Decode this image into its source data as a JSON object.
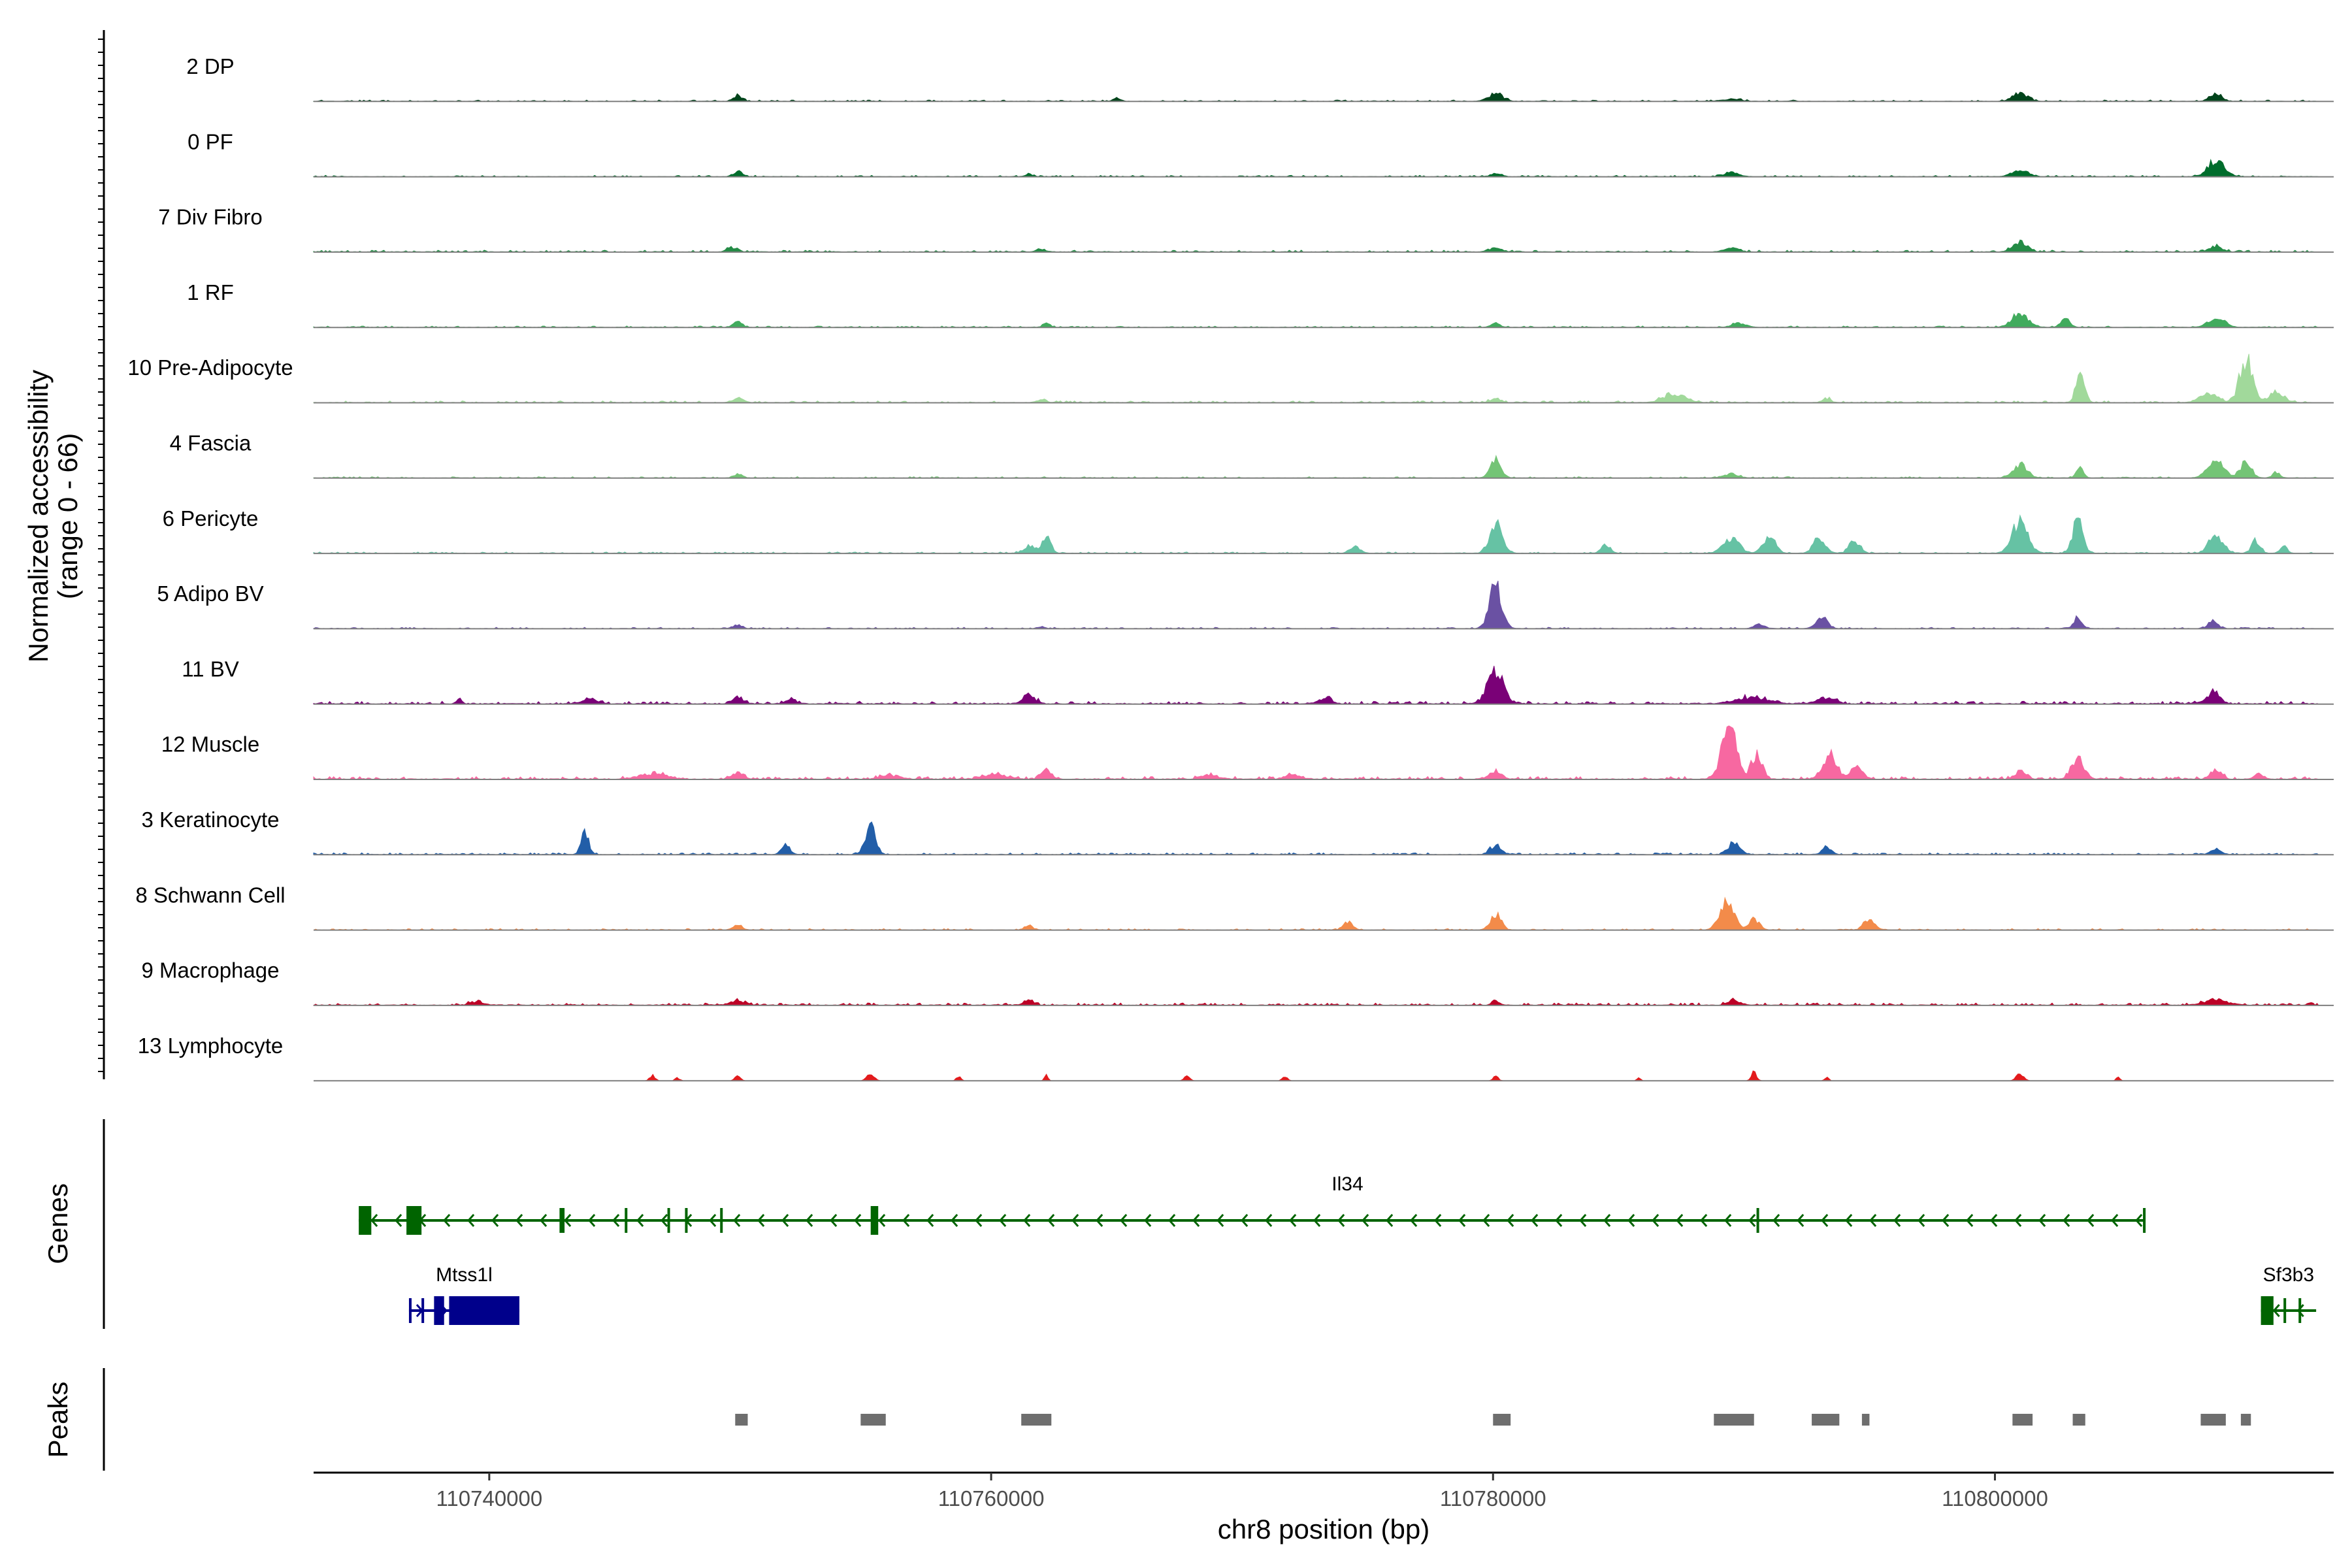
{
  "chart_data": {
    "type": "area",
    "title": "",
    "ylabel": "Normalized accessibility (range 0 - 66)",
    "ylabel_lines": [
      "Normalized accessibility",
      "(range 0 - 66)"
    ],
    "ylim": [
      0,
      66
    ],
    "xlabel": "chr8 position (bp)",
    "xlim": [
      110733000,
      110813500
    ],
    "xticks": [
      110740000,
      110760000,
      110780000,
      110800000
    ],
    "xtick_labels": [
      "110740000",
      "110760000",
      "110780000",
      "110800000"
    ],
    "tracks": [
      {
        "name": "2 DP",
        "color": "#00441b",
        "baseline": 1.5,
        "peaks": [
          [
            110749900,
            8,
            250
          ],
          [
            110765000,
            4,
            200
          ],
          [
            110780100,
            10,
            400
          ],
          [
            110789500,
            3,
            500
          ],
          [
            110801000,
            11,
            400
          ],
          [
            110808800,
            9,
            350
          ]
        ]
      },
      {
        "name": "0 PF",
        "color": "#006d2c",
        "baseline": 1.5,
        "peaks": [
          [
            110749900,
            7,
            250
          ],
          [
            110761500,
            3,
            200
          ],
          [
            110780100,
            4,
            300
          ],
          [
            110789500,
            6,
            400
          ],
          [
            110801000,
            9,
            450
          ],
          [
            110808800,
            22,
            450
          ]
        ]
      },
      {
        "name": "7 Div Fibro",
        "color": "#238b45",
        "baseline": 2,
        "peaks": [
          [
            110749700,
            6,
            300
          ],
          [
            110762000,
            4,
            250
          ],
          [
            110780100,
            6,
            350
          ],
          [
            110789500,
            5,
            400
          ],
          [
            110801000,
            13,
            400
          ],
          [
            110808800,
            7,
            350
          ]
        ]
      },
      {
        "name": "1 RF",
        "color": "#41ab5d",
        "baseline": 1.5,
        "peaks": [
          [
            110749900,
            7,
            250
          ],
          [
            110762200,
            6,
            200
          ],
          [
            110780100,
            5,
            250
          ],
          [
            110789800,
            5,
            400
          ],
          [
            110801000,
            19,
            450
          ],
          [
            110802800,
            11,
            250
          ],
          [
            110808800,
            12,
            450
          ]
        ]
      },
      {
        "name": "10 Pre-Adipocyte",
        "color": "#a1d99b",
        "baseline": 2,
        "peaks": [
          [
            110749900,
            6,
            300
          ],
          [
            110762000,
            4,
            250
          ],
          [
            110780100,
            5,
            300
          ],
          [
            110787200,
            12,
            600
          ],
          [
            110793300,
            6,
            200
          ],
          [
            110803400,
            34,
            250
          ],
          [
            110808500,
            14,
            450
          ],
          [
            110810000,
            58,
            350
          ],
          [
            110811200,
            14,
            400
          ]
        ]
      },
      {
        "name": "4 Fascia",
        "color": "#74c476",
        "baseline": 1.5,
        "peaks": [
          [
            110749900,
            5,
            250
          ],
          [
            110780100,
            23,
            300
          ],
          [
            110789500,
            5,
            400
          ],
          [
            110801000,
            18,
            400
          ],
          [
            110803400,
            12,
            200
          ],
          [
            110808800,
            24,
            450
          ],
          [
            110810000,
            22,
            300
          ],
          [
            110811200,
            8,
            200
          ]
        ]
      },
      {
        "name": "6 Pericyte",
        "color": "#66c2a4",
        "baseline": 1.5,
        "peaks": [
          [
            110761500,
            10,
            300
          ],
          [
            110762200,
            20,
            250
          ],
          [
            110774500,
            8,
            300
          ],
          [
            110780100,
            38,
            350
          ],
          [
            110784500,
            11,
            250
          ],
          [
            110789500,
            18,
            450
          ],
          [
            110791000,
            21,
            350
          ],
          [
            110793000,
            18,
            350
          ],
          [
            110794400,
            16,
            300
          ],
          [
            110801000,
            40,
            450
          ],
          [
            110803300,
            46,
            280
          ],
          [
            110808800,
            22,
            400
          ],
          [
            110810400,
            16,
            250
          ],
          [
            110811500,
            10,
            200
          ]
        ]
      },
      {
        "name": "5 Adipo BV",
        "color": "#6a51a3",
        "baseline": 1.5,
        "peaks": [
          [
            110749900,
            5,
            250
          ],
          [
            110762000,
            3,
            200
          ],
          [
            110780100,
            54,
            350
          ],
          [
            110790600,
            5,
            300
          ],
          [
            110793100,
            16,
            300
          ],
          [
            110803300,
            13,
            250
          ],
          [
            110808700,
            11,
            250
          ]
        ]
      },
      {
        "name": "11 BV",
        "color": "#7a0177",
        "baseline": 3,
        "peaks": [
          [
            110738800,
            6,
            150
          ],
          [
            110744000,
            6,
            400
          ],
          [
            110749900,
            7,
            300
          ],
          [
            110752000,
            5,
            300
          ],
          [
            110761500,
            11,
            350
          ],
          [
            110773300,
            7,
            350
          ],
          [
            110780100,
            41,
            450
          ],
          [
            110790300,
            8,
            900
          ],
          [
            110793300,
            8,
            500
          ],
          [
            110808700,
            14,
            400
          ]
        ]
      },
      {
        "name": "12 Muscle",
        "color": "#f768a1",
        "baseline": 3,
        "peaks": [
          [
            110746500,
            7,
            800
          ],
          [
            110749900,
            10,
            300
          ],
          [
            110756000,
            5,
            500
          ],
          [
            110760200,
            6,
            700
          ],
          [
            110762200,
            14,
            250
          ],
          [
            110768700,
            5,
            500
          ],
          [
            110772000,
            6,
            400
          ],
          [
            110780100,
            10,
            350
          ],
          [
            110789400,
            66,
            400
          ],
          [
            110790500,
            35,
            300
          ],
          [
            110793400,
            31,
            400
          ],
          [
            110794500,
            14,
            350
          ],
          [
            110801000,
            10,
            300
          ],
          [
            110803300,
            27,
            350
          ],
          [
            110808800,
            13,
            300
          ],
          [
            110810500,
            10,
            200
          ]
        ]
      },
      {
        "name": "3 Keratinocyte",
        "color": "#225ea8",
        "baseline": 2,
        "peaks": [
          [
            110743800,
            28,
            220
          ],
          [
            110751800,
            11,
            250
          ],
          [
            110755200,
            42,
            280
          ],
          [
            110780100,
            12,
            300
          ],
          [
            110789600,
            15,
            350
          ],
          [
            110793300,
            10,
            250
          ],
          [
            110808800,
            6,
            300
          ]
        ]
      },
      {
        "name": "8 Schwann Cell",
        "color": "#f38b4a",
        "baseline": 1.5,
        "peaks": [
          [
            110749900,
            6,
            250
          ],
          [
            110761500,
            5,
            250
          ],
          [
            110774200,
            11,
            250
          ],
          [
            110780100,
            20,
            300
          ],
          [
            110789300,
            38,
            400
          ],
          [
            110790400,
            14,
            300
          ],
          [
            110795000,
            16,
            300
          ]
        ]
      },
      {
        "name": "9 Macrophage",
        "color": "#bd0026",
        "baseline": 2.5,
        "peaks": [
          [
            110739500,
            4,
            400
          ],
          [
            110749900,
            6,
            400
          ],
          [
            110761500,
            6,
            300
          ],
          [
            110780100,
            6,
            200
          ],
          [
            110789600,
            7,
            300
          ],
          [
            110808800,
            7,
            600
          ],
          [
            110812600,
            5,
            100
          ]
        ]
      },
      {
        "name": "13 Lymphocyte",
        "color": "#e31a1c",
        "baseline": 0,
        "peaks": [
          [
            110746500,
            7,
            150
          ],
          [
            110747500,
            4,
            120
          ],
          [
            110749900,
            8,
            150
          ],
          [
            110755200,
            10,
            200
          ],
          [
            110758700,
            6,
            120
          ],
          [
            110762200,
            7,
            100
          ],
          [
            110767800,
            6,
            150
          ],
          [
            110771700,
            5,
            150
          ],
          [
            110780100,
            6,
            150
          ],
          [
            110785800,
            4,
            100
          ],
          [
            110790400,
            11,
            150
          ],
          [
            110793300,
            6,
            100
          ],
          [
            110801000,
            9,
            200
          ],
          [
            110804900,
            5,
            100
          ]
        ]
      }
    ],
    "genes": [
      {
        "name": "Il34",
        "strand": "-",
        "color": "#006400",
        "start": 110734800,
        "end": 110806000,
        "exons": [
          [
            110734800,
            110735300
          ],
          [
            110736700,
            110737300
          ],
          [
            110742800,
            110743000
          ],
          [
            110745400,
            110745500
          ],
          [
            110747100,
            110747200
          ],
          [
            110747800,
            110747900
          ],
          [
            110749200,
            110749300
          ],
          [
            110755200,
            110755500
          ],
          [
            110790500,
            110790600
          ],
          [
            110805900,
            110806000
          ]
        ]
      },
      {
        "name": "Mtss1l",
        "strand": "+",
        "color": "#00008b",
        "start": 110736800,
        "end": 110741200,
        "exons": [
          [
            110736800,
            110736900
          ],
          [
            110737300,
            110737400
          ],
          [
            110737800,
            110738200
          ],
          [
            110738400,
            110741200
          ]
        ]
      },
      {
        "name": "Sf3b3",
        "strand": "-",
        "color": "#006400",
        "start": 110810600,
        "end": 110812800,
        "exons": [
          [
            110810600,
            110811100
          ],
          [
            110811500,
            110811600
          ],
          [
            110812100,
            110812200
          ]
        ]
      }
    ],
    "peaks_regions": [
      [
        110749800,
        110750300
      ],
      [
        110754800,
        110755800
      ],
      [
        110761200,
        110762400
      ],
      [
        110780000,
        110780700
      ],
      [
        110788800,
        110790400
      ],
      [
        110792700,
        110793800
      ],
      [
        110794700,
        110795000
      ],
      [
        110800700,
        110801500
      ],
      [
        110803100,
        110803600
      ],
      [
        110808200,
        110809200
      ],
      [
        110809800,
        110810200
      ]
    ],
    "panel_labels": {
      "genes": "Genes",
      "peaks": "Peaks"
    }
  }
}
